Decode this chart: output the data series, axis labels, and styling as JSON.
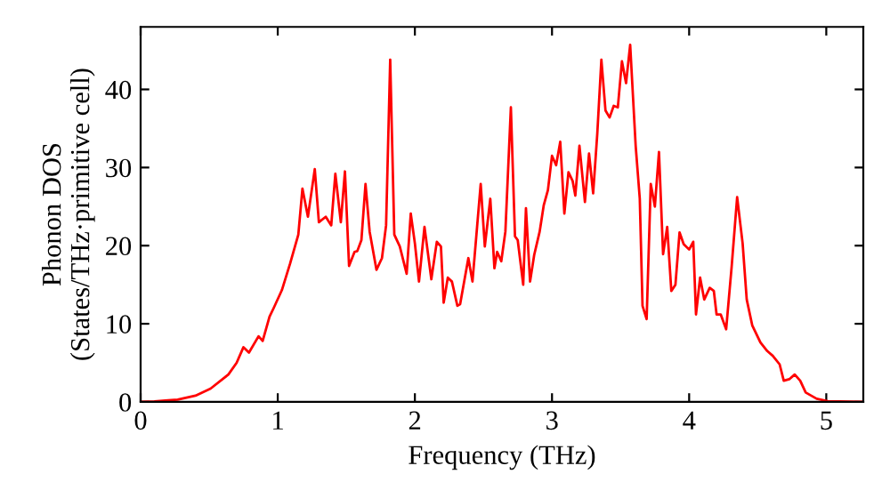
{
  "chart_data": {
    "type": "line",
    "xlabel": "Frequency (THz)",
    "ylabel": "Phonon DOS\n(States/THz·primitive cell)",
    "x": [
      0,
      0.1,
      0.2,
      0.27,
      0.4,
      0.51,
      0.64,
      0.7,
      0.75,
      0.79,
      0.86,
      0.89,
      0.94,
      0.97,
      1.03,
      1.09,
      1.15,
      1.18,
      1.22,
      1.27,
      1.3,
      1.35,
      1.39,
      1.42,
      1.46,
      1.49,
      1.52,
      1.56,
      1.58,
      1.61,
      1.64,
      1.67,
      1.72,
      1.76,
      1.79,
      1.82,
      1.85,
      1.89,
      1.94,
      1.97,
      2.0,
      2.03,
      2.07,
      2.12,
      2.16,
      2.19,
      2.21,
      2.24,
      2.27,
      2.31,
      2.33,
      2.39,
      2.42,
      2.48,
      2.51,
      2.55,
      2.58,
      2.6,
      2.63,
      2.66,
      2.7,
      2.73,
      2.75,
      2.79,
      2.81,
      2.84,
      2.87,
      2.91,
      2.94,
      2.97,
      3.0,
      3.03,
      3.06,
      3.09,
      3.12,
      3.15,
      3.17,
      3.2,
      3.24,
      3.27,
      3.3,
      3.33,
      3.36,
      3.39,
      3.42,
      3.45,
      3.48,
      3.51,
      3.54,
      3.57,
      3.61,
      3.64,
      3.66,
      3.69,
      3.72,
      3.75,
      3.78,
      3.81,
      3.84,
      3.87,
      3.9,
      3.93,
      3.96,
      4.0,
      4.03,
      4.05,
      4.08,
      4.11,
      4.15,
      4.18,
      4.2,
      4.23,
      4.27,
      4.31,
      4.35,
      4.39,
      4.42,
      4.46,
      4.52,
      4.57,
      4.61,
      4.66,
      4.69,
      4.73,
      4.77,
      4.81,
      4.85,
      4.93,
      5.01,
      5.27
    ],
    "series": [
      {
        "color": "#ff0000",
        "values": [
          0,
          0.05,
          0.2,
          0.3,
          0.8,
          1.7,
          3.5,
          5.0,
          7.0,
          6.3,
          8.4,
          7.8,
          10.9,
          12,
          14.3,
          17.7,
          21.4,
          27.3,
          23.7,
          29.8,
          23,
          23.7,
          22.6,
          29.2,
          23,
          29.5,
          17.4,
          19.2,
          19.3,
          20.7,
          27.9,
          21.8,
          16.9,
          18.4,
          22.6,
          43.8,
          21.4,
          19.9,
          16.4,
          24.1,
          20.3,
          15.4,
          22.4,
          15.7,
          20.5,
          19.9,
          12.7,
          15.9,
          15.4,
          12.3,
          12.5,
          18.4,
          15.4,
          27.9,
          19.9,
          26,
          17.1,
          19.2,
          18,
          21.8,
          37.7,
          21.2,
          20.7,
          15,
          24.8,
          15.4,
          18.8,
          21.8,
          25.2,
          27.1,
          31.5,
          30.3,
          33.3,
          24.1,
          29.4,
          28.3,
          26.4,
          32.8,
          25.6,
          31.8,
          26.7,
          34.3,
          43.8,
          37.3,
          36.4,
          37.9,
          37.7,
          43.6,
          40.8,
          45.7,
          32.8,
          26,
          12.3,
          10.6,
          27.9,
          25,
          32,
          18.9,
          22.4,
          14.2,
          15,
          21.7,
          20.2,
          19.5,
          20.5,
          11.2,
          15.9,
          13.1,
          14.6,
          14.2,
          11.2,
          11.2,
          9.3,
          17.3,
          26.2,
          20.3,
          13.1,
          9.8,
          7.6,
          6.5,
          5.9,
          4.8,
          2.7,
          2.9,
          3.5,
          2.7,
          1.2,
          0.4,
          0.1,
          0
        ]
      }
    ],
    "xlim": [
      0,
      5.27
    ],
    "ylim": [
      0,
      48
    ],
    "xticks": [
      0,
      1,
      2,
      3,
      4,
      5
    ],
    "yticks": [
      0,
      10,
      20,
      30,
      40
    ],
    "grid": false,
    "legend": false,
    "marker": "none",
    "line_style": "solid"
  }
}
